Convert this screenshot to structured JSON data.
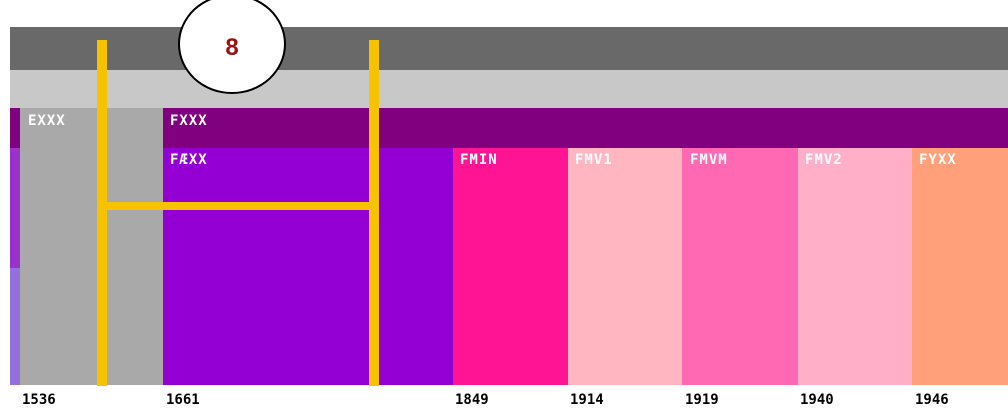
{
  "callout": {
    "number": "8"
  },
  "top_band": {
    "label": "FXXX"
  },
  "left_band": {
    "label": "EXXX"
  },
  "segments": [
    {
      "label": "FÆXX",
      "color": "#9400d3"
    },
    {
      "label": "FMIN",
      "color": "#ff1493"
    },
    {
      "label": "FMV1",
      "color": "#ffb6c1"
    },
    {
      "label": "FMVM",
      "color": "#ff69b4"
    },
    {
      "label": "FMV2",
      "color": "#ffb0c8"
    },
    {
      "label": "FYXX",
      "color": "#ffa07a"
    }
  ],
  "years": [
    "1536",
    "1661",
    "1849",
    "1914",
    "1919",
    "1940",
    "1946"
  ],
  "colors": {
    "dark_band": "#696969",
    "light_band": "#c8c8c8",
    "purple_band": "#800080",
    "gray_segment": "#a9a9a9",
    "bracket": "#f7c200"
  }
}
